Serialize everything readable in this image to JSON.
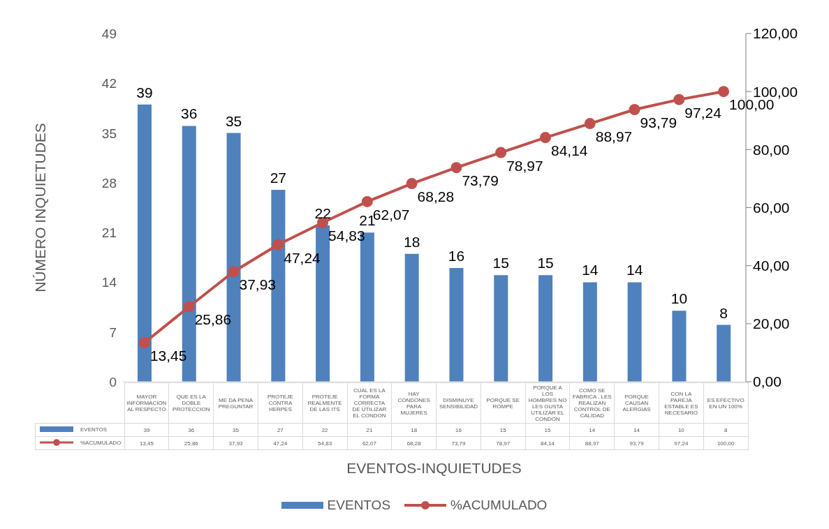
{
  "chart_data": {
    "type": "bar",
    "xlabel": "EVENTOS-INQUIETUDES",
    "ylabel": "NÚMERO INQUIETUDES",
    "categories": [
      "MAYOR INFORMACION AL RESPECTO",
      "QUE ES LA DOBLE PROTECCION",
      "ME DA PENA PREGUNTAR",
      "PROTEJE CONTRA HERPES",
      "PROTEJE REALMENTE DE LAS ITS",
      "CUAL ES LA FORMA CORRECTA DE UTILIZAR EL CONDON",
      "HAY CONDONES PARA MUJERES",
      "DISMINUYE SENSIBILIDAD",
      "PORQUE SE ROMPE",
      "PORQUE A LOS HOMBRES NO LES GUSTA UTILIZAR EL CONDON",
      "COMO SE FABRICA , LES REALIZAN CONTROL DE CALIDAD",
      "PORQUE CAUSAN ALERGIAS",
      "CON LA PAREJA ESTABLE ES NECESARIO",
      "ES EFECTIVO EN UN 100%"
    ],
    "series": [
      {
        "name": "EVENTOS",
        "color": "#4f81bd",
        "values": [
          39,
          36,
          35,
          27,
          22,
          21,
          18,
          16,
          15,
          15,
          14,
          14,
          10,
          8
        ],
        "value_labels": [
          "39",
          "36",
          "35",
          "27",
          "22",
          "21",
          "18",
          "16",
          "15",
          "15",
          "14",
          "14",
          "10",
          "8"
        ]
      },
      {
        "name": "%ACUMULADO",
        "type": "line",
        "axis": "y2",
        "color": "#c0504d",
        "marker": "circle",
        "values": [
          13.45,
          25.86,
          37.93,
          47.24,
          54.83,
          62.07,
          68.28,
          73.79,
          78.97,
          84.14,
          88.97,
          93.79,
          97.24,
          100
        ],
        "value_labels": [
          "13,45",
          "25,86",
          "37,93",
          "47,24",
          "54,83",
          "62,07",
          "68,28",
          "73,79",
          "78,97",
          "84,14",
          "88,97",
          "93,79",
          "97,24",
          "100,00"
        ]
      }
    ],
    "data_labels": true,
    "ylim": [
      0,
      49
    ],
    "yticks": [
      0,
      7,
      14,
      21,
      28,
      35,
      42,
      49
    ],
    "y2lim": [
      0,
      120
    ],
    "y2ticks": [
      {
        "value": 0,
        "label": "0,00"
      },
      {
        "value": 20,
        "label": "20,00"
      },
      {
        "value": 40,
        "label": "40,00"
      },
      {
        "value": 60,
        "label": "60,00"
      },
      {
        "value": 80,
        "label": "80,00"
      },
      {
        "value": 100,
        "label": "100,00"
      },
      {
        "value": 120,
        "label": "120,00"
      }
    ],
    "grid": false,
    "legend": "bottom"
  }
}
